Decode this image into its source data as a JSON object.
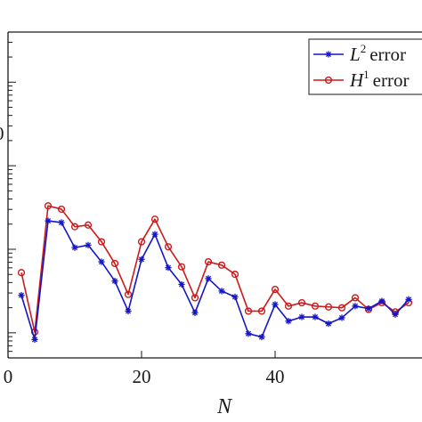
{
  "chart_data": {
    "type": "line",
    "xlabel": "N",
    "ylabel": "",
    "xlim": [
      0,
      62
    ],
    "ylim_log10": [
      -3.3,
      0.6
    ],
    "log_y": true,
    "grid": false,
    "legend_placement": "top-right",
    "x_ticks": [
      "0",
      "20",
      "40"
    ],
    "left_fragment_text": "0",
    "colors": {
      "l2": "#1515c8",
      "h1": "#cc1a1a",
      "axis": "#1a1a1a"
    },
    "x": [
      2,
      4,
      6,
      8,
      10,
      12,
      14,
      16,
      18,
      20,
      22,
      24,
      26,
      28,
      30,
      32,
      34,
      36,
      38,
      40,
      42,
      44,
      46,
      48,
      50,
      52,
      54,
      56,
      58,
      60
    ],
    "series": [
      {
        "key": "l2",
        "legend_symbol": "L",
        "legend_sup": "2",
        "legend_word": "error",
        "marker": "asterisk",
        "values_log10": [
          -2.55,
          -3.08,
          -1.66,
          -1.68,
          -1.98,
          -1.95,
          -2.15,
          -2.38,
          -2.74,
          -2.12,
          -1.82,
          -2.22,
          -2.42,
          -2.76,
          -2.35,
          -2.5,
          -2.57,
          -3.01,
          -3.05,
          -2.66,
          -2.86,
          -2.81,
          -2.81,
          -2.89,
          -2.82,
          -2.68,
          -2.71,
          -2.62,
          -2.78,
          -2.6
        ]
      },
      {
        "key": "h1",
        "legend_symbol": "H",
        "legend_sup": "1",
        "legend_word": "error",
        "marker": "circle",
        "values_log10": [
          -2.28,
          -2.99,
          -1.48,
          -1.52,
          -1.73,
          -1.71,
          -1.91,
          -2.17,
          -2.54,
          -1.91,
          -1.64,
          -1.97,
          -2.21,
          -2.58,
          -2.15,
          -2.19,
          -2.3,
          -2.74,
          -2.74,
          -2.48,
          -2.68,
          -2.64,
          -2.68,
          -2.69,
          -2.7,
          -2.58,
          -2.72,
          -2.64,
          -2.75,
          -2.64
        ]
      }
    ]
  }
}
